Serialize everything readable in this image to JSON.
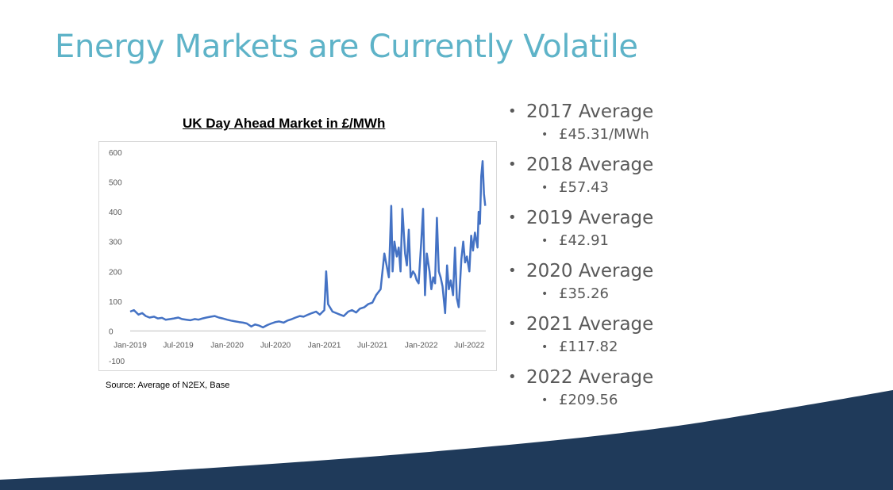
{
  "slide": {
    "title": "Energy Markets are Currently Volatile",
    "source": "Source: Average of N2EX, Base",
    "colors": {
      "title": "#5eb3c8",
      "line": "#4472c4",
      "footer": "#1f3a5a"
    }
  },
  "bullets": [
    {
      "label": "2017 Average",
      "value": "£45.31/MWh"
    },
    {
      "label": "2018 Average",
      "value": "£57.43"
    },
    {
      "label": "2019 Average",
      "value": "£42.91"
    },
    {
      "label": "2020 Average",
      "value": "£35.26"
    },
    {
      "label": "2021 Average",
      "value": "£117.82"
    },
    {
      "label": "2022 Average",
      "value": "£209.56"
    }
  ],
  "chart_data": {
    "type": "line",
    "title": "UK Day Ahead Market in £/MWh",
    "xlabel": "",
    "ylabel": "",
    "ylim": [
      -100,
      600
    ],
    "yticks": [
      "600",
      "500",
      "400",
      "300",
      "200",
      "100",
      "0",
      "-100"
    ],
    "xticks": [
      "Jan-2019",
      "Jul-2019",
      "Jan-2020",
      "Jul-2020",
      "Jan-2021",
      "Jul-2021",
      "Jan-2022",
      "Jul-2022"
    ],
    "grid": false,
    "series": [
      {
        "x": [
          "2019-01-01",
          "2019-01-15",
          "2019-02-01",
          "2019-02-15",
          "2019-03-01",
          "2019-03-15",
          "2019-04-01",
          "2019-04-15",
          "2019-05-01",
          "2019-05-15",
          "2019-06-01",
          "2019-06-15",
          "2019-07-01",
          "2019-07-15",
          "2019-08-01",
          "2019-08-15",
          "2019-09-01",
          "2019-09-15",
          "2019-10-01",
          "2019-10-15",
          "2019-11-01",
          "2019-11-15",
          "2019-12-01",
          "2019-12-15",
          "2020-01-01",
          "2020-01-15",
          "2020-02-01",
          "2020-02-15",
          "2020-03-01",
          "2020-03-15",
          "2020-04-01",
          "2020-04-15",
          "2020-05-01",
          "2020-05-15",
          "2020-06-01",
          "2020-06-15",
          "2020-07-01",
          "2020-07-15",
          "2020-08-01",
          "2020-08-15",
          "2020-09-01",
          "2020-09-15",
          "2020-10-01",
          "2020-10-15",
          "2020-11-01",
          "2020-11-15",
          "2020-12-01",
          "2020-12-15",
          "2021-01-01",
          "2021-01-08",
          "2021-01-15",
          "2021-02-01",
          "2021-02-15",
          "2021-03-01",
          "2021-03-15",
          "2021-04-01",
          "2021-04-15",
          "2021-05-01",
          "2021-05-15",
          "2021-06-01",
          "2021-06-15",
          "2021-07-01",
          "2021-07-15",
          "2021-08-01",
          "2021-08-15",
          "2021-09-01",
          "2021-09-10",
          "2021-09-15",
          "2021-09-22",
          "2021-10-01",
          "2021-10-08",
          "2021-10-15",
          "2021-10-22",
          "2021-11-01",
          "2021-11-08",
          "2021-11-15",
          "2021-11-22",
          "2021-12-01",
          "2021-12-08",
          "2021-12-15",
          "2021-12-22",
          "2022-01-01",
          "2022-01-08",
          "2022-01-15",
          "2022-01-22",
          "2022-02-01",
          "2022-02-08",
          "2022-02-15",
          "2022-02-22",
          "2022-03-01",
          "2022-03-08",
          "2022-03-15",
          "2022-03-22",
          "2022-04-01",
          "2022-04-08",
          "2022-04-15",
          "2022-04-22",
          "2022-05-01",
          "2022-05-08",
          "2022-05-15",
          "2022-05-22",
          "2022-06-01",
          "2022-06-08",
          "2022-06-15",
          "2022-06-22",
          "2022-07-01",
          "2022-07-08",
          "2022-07-15",
          "2022-07-22",
          "2022-08-01",
          "2022-08-05",
          "2022-08-10",
          "2022-08-15",
          "2022-08-20",
          "2022-08-25",
          "2022-08-30"
        ],
        "values": [
          65,
          70,
          55,
          60,
          50,
          45,
          48,
          42,
          44,
          38,
          40,
          42,
          45,
          40,
          38,
          36,
          40,
          38,
          42,
          45,
          48,
          50,
          45,
          42,
          38,
          35,
          32,
          30,
          28,
          25,
          15,
          22,
          18,
          12,
          20,
          25,
          30,
          32,
          28,
          35,
          40,
          45,
          50,
          48,
          55,
          60,
          65,
          55,
          70,
          200,
          90,
          65,
          60,
          55,
          50,
          65,
          70,
          62,
          75,
          80,
          90,
          95,
          120,
          140,
          260,
          180,
          420,
          200,
          300,
          250,
          280,
          200,
          410,
          260,
          220,
          340,
          180,
          200,
          190,
          170,
          160,
          300,
          410,
          120,
          260,
          200,
          140,
          180,
          160,
          380,
          200,
          180,
          150,
          60,
          220,
          140,
          170,
          120,
          280,
          110,
          80,
          240,
          300,
          230,
          250,
          200,
          320,
          270,
          330,
          280,
          400,
          360,
          520,
          570,
          460,
          420
        ]
      }
    ]
  }
}
